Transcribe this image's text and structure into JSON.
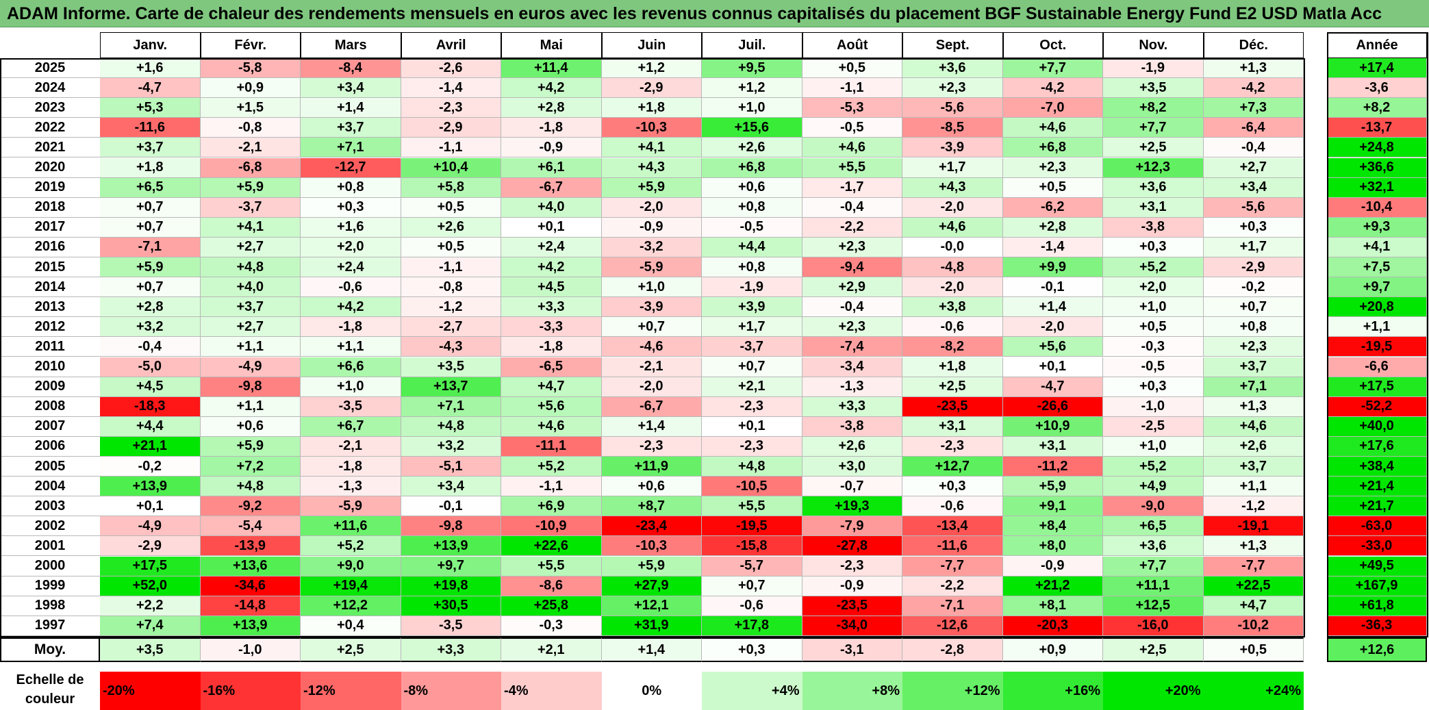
{
  "title": "ADAM Informe. Carte de chaleur des rendements mensuels en euros avec les revenus connus capitalisés du placement BGF Sustainable Energy Fund E2 USD Matla Acc",
  "chart_data": {
    "type": "heatmap",
    "title": "ADAM Informe. Carte de chaleur des rendements mensuels en euros avec les revenus connus capitalisés du placement BGF Sustainable Energy Fund E2 USD Matla Acc",
    "columns": [
      "Janv.",
      "Févr.",
      "Mars",
      "Avril",
      "Mai",
      "Juin",
      "Juil.",
      "Août",
      "Sept.",
      "Oct.",
      "Nov.",
      "Déc."
    ],
    "annual_header": "Année",
    "rows": [
      {
        "year": "2025",
        "values": [
          "+1,6",
          "-5,8",
          "-8,4",
          "-2,6",
          "+11,4",
          "+1,2",
          "+9,5",
          "+0,5",
          "+3,6",
          "+7,7",
          "-1,9",
          "+1,3"
        ],
        "annual": "+17,4"
      },
      {
        "year": "2024",
        "values": [
          "-4,7",
          "+0,9",
          "+3,4",
          "-1,4",
          "+4,2",
          "-2,9",
          "+1,2",
          "-1,1",
          "+2,3",
          "-4,2",
          "+3,5",
          "-4,2"
        ],
        "annual": "-3,6"
      },
      {
        "year": "2023",
        "values": [
          "+5,3",
          "+1,5",
          "+1,4",
          "-2,3",
          "+2,8",
          "+1,8",
          "+1,0",
          "-5,3",
          "-5,6",
          "-7,0",
          "+8,2",
          "+7,3"
        ],
        "annual": "+8,2"
      },
      {
        "year": "2022",
        "values": [
          "-11,6",
          "-0,8",
          "+3,7",
          "-2,9",
          "-1,8",
          "-10,3",
          "+15,6",
          "-0,5",
          "-8,5",
          "+4,6",
          "+7,7",
          "-6,4"
        ],
        "annual": "-13,7"
      },
      {
        "year": "2021",
        "values": [
          "+3,7",
          "-2,1",
          "+7,1",
          "-1,1",
          "-0,9",
          "+4,1",
          "+2,6",
          "+4,6",
          "-3,9",
          "+6,8",
          "+2,5",
          "-0,4"
        ],
        "annual": "+24,8"
      },
      {
        "year": "2020",
        "values": [
          "+1,8",
          "-6,8",
          "-12,7",
          "+10,4",
          "+6,1",
          "+4,3",
          "+6,8",
          "+5,5",
          "+1,7",
          "+2,3",
          "+12,3",
          "+2,7"
        ],
        "annual": "+36,6"
      },
      {
        "year": "2019",
        "values": [
          "+6,5",
          "+5,9",
          "+0,8",
          "+5,8",
          "-6,7",
          "+5,9",
          "+0,6",
          "-1,7",
          "+4,3",
          "+0,5",
          "+3,6",
          "+3,4"
        ],
        "annual": "+32,1"
      },
      {
        "year": "2018",
        "values": [
          "+0,7",
          "-3,7",
          "+0,3",
          "+0,5",
          "+4,0",
          "-2,0",
          "+0,8",
          "-0,4",
          "-2,0",
          "-6,2",
          "+3,1",
          "-5,6"
        ],
        "annual": "-10,4"
      },
      {
        "year": "2017",
        "values": [
          "+0,7",
          "+4,1",
          "+1,6",
          "+2,6",
          "+0,1",
          "-0,9",
          "-0,5",
          "-2,2",
          "+4,6",
          "+2,8",
          "-3,8",
          "+0,3"
        ],
        "annual": "+9,3"
      },
      {
        "year": "2016",
        "values": [
          "-7,1",
          "+2,7",
          "+2,0",
          "+0,5",
          "+2,4",
          "-3,2",
          "+4,4",
          "+2,3",
          "-0,0",
          "-1,4",
          "+0,3",
          "+1,7"
        ],
        "annual": "+4,1"
      },
      {
        "year": "2015",
        "values": [
          "+5,9",
          "+4,8",
          "+2,4",
          "-1,1",
          "+4,2",
          "-5,9",
          "+0,8",
          "-9,4",
          "-4,8",
          "+9,9",
          "+5,2",
          "-2,9"
        ],
        "annual": "+7,5"
      },
      {
        "year": "2014",
        "values": [
          "+0,7",
          "+4,0",
          "-0,6",
          "-0,8",
          "+4,5",
          "+1,0",
          "-1,9",
          "+2,9",
          "-2,0",
          "-0,1",
          "+2,0",
          "-0,2"
        ],
        "annual": "+9,7"
      },
      {
        "year": "2013",
        "values": [
          "+2,8",
          "+3,7",
          "+4,2",
          "-1,2",
          "+3,3",
          "-3,9",
          "+3,9",
          "-0,4",
          "+3,8",
          "+1,4",
          "+1,0",
          "+0,7"
        ],
        "annual": "+20,8"
      },
      {
        "year": "2012",
        "values": [
          "+3,2",
          "+2,7",
          "-1,8",
          "-2,7",
          "-3,3",
          "+0,7",
          "+1,7",
          "+2,3",
          "-0,6",
          "-2,0",
          "+0,5",
          "+0,8"
        ],
        "annual": "+1,1"
      },
      {
        "year": "2011",
        "values": [
          "-0,4",
          "+1,1",
          "+1,1",
          "-4,3",
          "-1,8",
          "-4,6",
          "-3,7",
          "-7,4",
          "-8,2",
          "+5,6",
          "-0,3",
          "+2,3"
        ],
        "annual": "-19,5"
      },
      {
        "year": "2010",
        "values": [
          "-5,0",
          "-4,9",
          "+6,6",
          "+3,5",
          "-6,5",
          "-2,1",
          "+0,7",
          "-3,4",
          "+1,8",
          "+0,1",
          "-0,5",
          "+3,7"
        ],
        "annual": "-6,6"
      },
      {
        "year": "2009",
        "values": [
          "+4,5",
          "-9,8",
          "+1,0",
          "+13,7",
          "+4,7",
          "-2,0",
          "+2,1",
          "-1,3",
          "+2,5",
          "-4,7",
          "+0,3",
          "+7,1"
        ],
        "annual": "+17,5"
      },
      {
        "year": "2008",
        "values": [
          "-18,3",
          "+1,1",
          "-3,5",
          "+7,1",
          "+5,6",
          "-6,7",
          "-2,3",
          "+3,3",
          "-23,5",
          "-26,6",
          "-1,0",
          "+1,3"
        ],
        "annual": "-52,2"
      },
      {
        "year": "2007",
        "values": [
          "+4,4",
          "+0,6",
          "+6,7",
          "+4,8",
          "+4,6",
          "+1,4",
          "+0,1",
          "-3,8",
          "+3,1",
          "+10,9",
          "-2,5",
          "+4,6"
        ],
        "annual": "+40,0"
      },
      {
        "year": "2006",
        "values": [
          "+21,1",
          "+5,9",
          "-2,1",
          "+3,2",
          "-11,1",
          "-2,3",
          "-2,3",
          "+2,6",
          "-2,3",
          "+3,1",
          "+1,0",
          "+2,6"
        ],
        "annual": "+17,6"
      },
      {
        "year": "2005",
        "values": [
          "-0,2",
          "+7,2",
          "-1,8",
          "-5,1",
          "+5,2",
          "+11,9",
          "+4,8",
          "+3,0",
          "+12,7",
          "-11,2",
          "+5,2",
          "+3,7"
        ],
        "annual": "+38,4"
      },
      {
        "year": "2004",
        "values": [
          "+13,9",
          "+4,8",
          "-1,3",
          "+3,4",
          "-1,1",
          "+0,6",
          "-10,5",
          "-0,7",
          "+0,3",
          "+5,9",
          "+4,9",
          "+1,1"
        ],
        "annual": "+21,4"
      },
      {
        "year": "2003",
        "values": [
          "+0,1",
          "-9,2",
          "-5,9",
          "-0,1",
          "+6,9",
          "+8,7",
          "+5,5",
          "+19,3",
          "-0,6",
          "+9,1",
          "-9,0",
          "-1,2"
        ],
        "annual": "+21,7"
      },
      {
        "year": "2002",
        "values": [
          "-4,9",
          "-5,4",
          "+11,6",
          "-9,8",
          "-10,9",
          "-23,4",
          "-19,5",
          "-7,9",
          "-13,4",
          "+8,4",
          "+6,5",
          "-19,1"
        ],
        "annual": "-63,0"
      },
      {
        "year": "2001",
        "values": [
          "-2,9",
          "-13,9",
          "+5,2",
          "+13,9",
          "+22,6",
          "-10,3",
          "-15,8",
          "-27,8",
          "-11,6",
          "+8,0",
          "+3,6",
          "+1,3"
        ],
        "annual": "-33,0"
      },
      {
        "year": "2000",
        "values": [
          "+17,5",
          "+13,6",
          "+9,0",
          "+9,7",
          "+5,5",
          "+5,9",
          "-5,7",
          "-2,3",
          "-7,7",
          "-0,9",
          "+7,7",
          "-7,7"
        ],
        "annual": "+49,5"
      },
      {
        "year": "1999",
        "values": [
          "+52,0",
          "-34,6",
          "+19,4",
          "+19,8",
          "-8,6",
          "+27,9",
          "+0,7",
          "-0,9",
          "-2,2",
          "+21,2",
          "+11,1",
          "+22,5"
        ],
        "annual": "+167,9"
      },
      {
        "year": "1998",
        "values": [
          "+2,2",
          "-14,8",
          "+12,2",
          "+30,5",
          "+25,8",
          "+12,1",
          "-0,6",
          "-23,5",
          "-7,1",
          "+8,1",
          "+12,5",
          "+4,7"
        ],
        "annual": "+61,8"
      },
      {
        "year": "1997",
        "values": [
          "+7,4",
          "+13,9",
          "+0,4",
          "-3,5",
          "-0,3",
          "+31,9",
          "+17,8",
          "-34,0",
          "-12,6",
          "-20,3",
          "-16,0",
          "-10,2"
        ],
        "annual": "-36,3"
      }
    ],
    "average": {
      "label": "Moy.",
      "values": [
        "+3,5",
        "-1,0",
        "+2,5",
        "+3,3",
        "+2,1",
        "+1,4",
        "+0,3",
        "-3,1",
        "-2,8",
        "+0,9",
        "+2,5",
        "+0,5"
      ],
      "annual": "+12,6"
    },
    "scale": {
      "label": "Echelle de couleur",
      "entries": [
        {
          "text": "-20%",
          "value": -20,
          "align": "left"
        },
        {
          "text": "-16%",
          "value": -16,
          "align": "left"
        },
        {
          "text": "-12%",
          "value": -12,
          "align": "left"
        },
        {
          "text": "-8%",
          "value": -8,
          "align": "left"
        },
        {
          "text": "-4%",
          "value": -4,
          "align": "left"
        },
        {
          "text": "0%",
          "value": 0,
          "align": "center"
        },
        {
          "text": "+4%",
          "value": 4,
          "align": "right"
        },
        {
          "text": "+8%",
          "value": 8,
          "align": "right"
        },
        {
          "text": "+12%",
          "value": 12,
          "align": "right"
        },
        {
          "text": "+16%",
          "value": 16,
          "align": "right"
        },
        {
          "text": "+20%",
          "value": 20,
          "align": "right"
        },
        {
          "text": "+24%",
          "value": 24,
          "align": "right"
        }
      ]
    },
    "colors": {
      "negative_max": "#ff0000",
      "positive_max": "#00e600",
      "neutral": "#ffffff",
      "title_bg": "#7fc77f"
    }
  }
}
